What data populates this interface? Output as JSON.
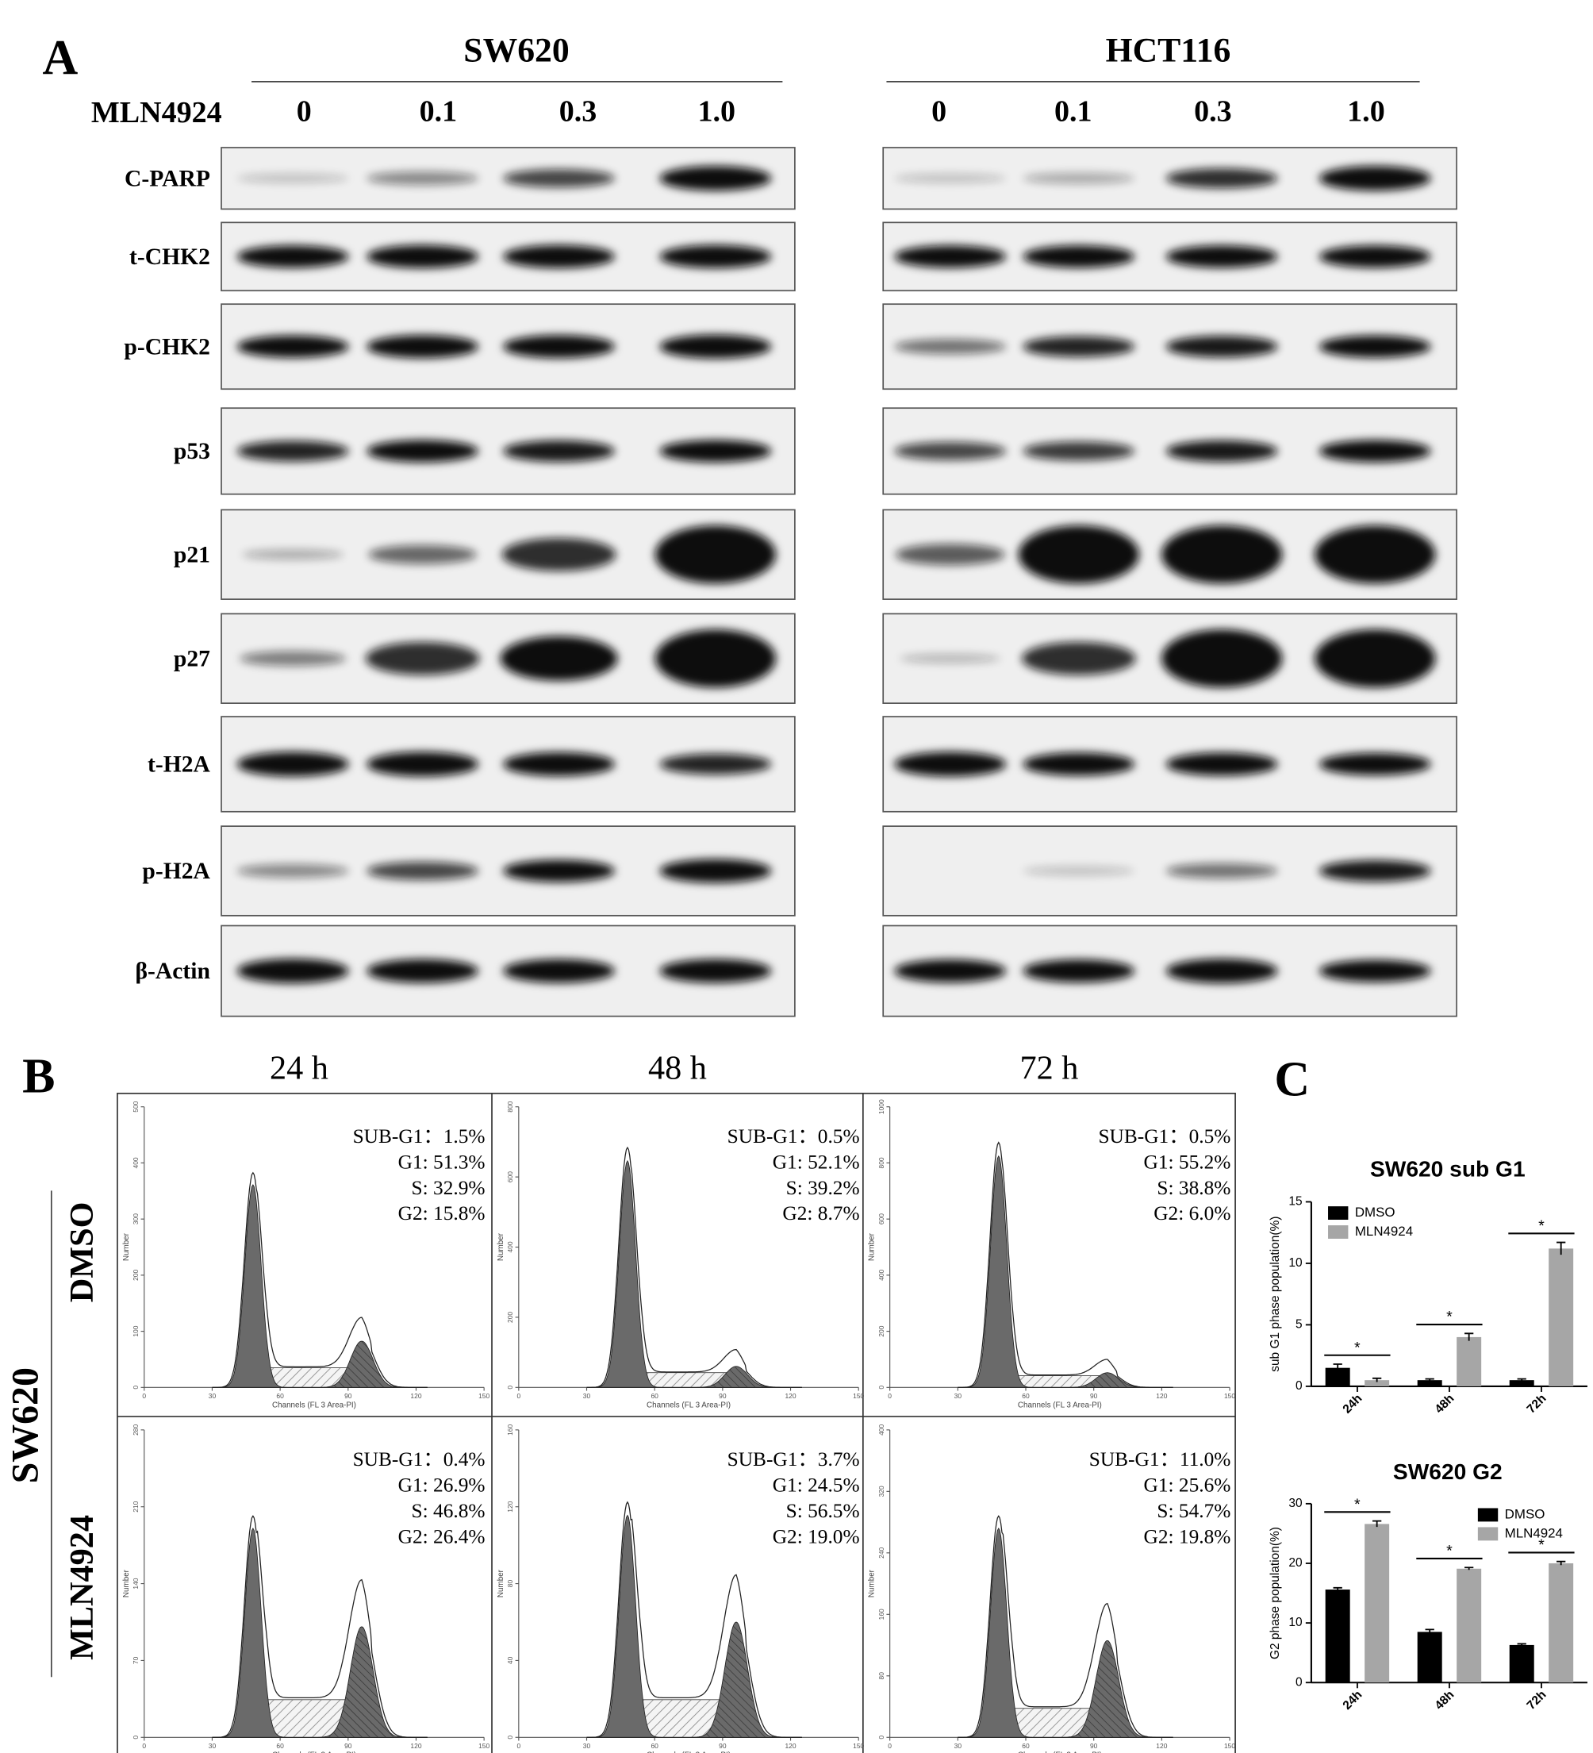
{
  "panel_a": {
    "label": "A",
    "cell_lines": [
      "SW620",
      "HCT116"
    ],
    "treatment": "MLN4924",
    "doses": [
      "0",
      "0.1",
      "0.3",
      "1.0"
    ],
    "proteins": [
      "C-PARP",
      "t-CHK2",
      "p-CHK2",
      "p53",
      "p21",
      "p27",
      "t-H2A",
      "p-H2A",
      "β-Actin"
    ]
  },
  "panel_b": {
    "label": "B",
    "cell_line": "SW620",
    "times": [
      "24 h",
      "48 h",
      "72 h"
    ],
    "x_axis_label": "Channels (FL 3 Area-PI)",
    "y_axis_label": "Number",
    "xticks": [
      0,
      30,
      60,
      90,
      120,
      150
    ],
    "rows": [
      {
        "condition": "DMSO",
        "panels": [
          {
            "yticks": [
              0,
              100,
              200,
              300,
              400,
              500
            ],
            "stats": [
              "SUB-G1：1.5%",
              "G1: 51.3%",
              "S: 32.9%",
              "G2: 15.8%"
            ]
          },
          {
            "yticks": [
              0,
              200,
              400,
              600,
              800
            ],
            "stats": [
              "SUB-G1：0.5%",
              "G1: 52.1%",
              "S: 39.2%",
              "G2:  8.7%"
            ]
          },
          {
            "yticks": [
              0,
              200,
              400,
              600,
              800,
              1000
            ],
            "stats": [
              "SUB-G1：0.5%",
              "G1: 55.2%",
              "S: 38.8%",
              "G2:  6.0%"
            ]
          }
        ]
      },
      {
        "condition": "MLN4924",
        "panels": [
          {
            "yticks": [
              0,
              70,
              140,
              210,
              280
            ],
            "stats": [
              "SUB-G1：0.4%",
              "G1: 26.9%",
              "S: 46.8%",
              "G2: 26.4%"
            ]
          },
          {
            "yticks": [
              0,
              40,
              80,
              120,
              160
            ],
            "stats": [
              "SUB-G1：3.7%",
              "G1: 24.5%",
              "S: 56.5%",
              "G2: 19.0%"
            ]
          },
          {
            "yticks": [
              0,
              80,
              160,
              240,
              320,
              400
            ],
            "stats": [
              "SUB-G1：11.0%",
              "G1: 25.6%",
              "S: 54.7%",
              "G2: 19.8%"
            ]
          }
        ]
      }
    ]
  },
  "panel_c_label": "C",
  "chart_data": [
    {
      "type": "bar",
      "title": "SW620 sub G1",
      "y_label": "sub G1 phase population(%)",
      "categories": [
        "24h",
        "48h",
        "72h"
      ],
      "series": [
        {
          "name": "DMSO",
          "color": "#000000",
          "values": [
            1.5,
            0.5,
            0.5
          ],
          "errors": [
            0.3,
            0.1,
            0.1
          ]
        },
        {
          "name": "MLN4924",
          "color": "#a6a6a6",
          "values": [
            0.5,
            4.0,
            11.2
          ],
          "errors": [
            0.15,
            0.3,
            0.5
          ]
        }
      ],
      "significance": [
        "*",
        "*",
        "*"
      ],
      "ylim": [
        0,
        15
      ],
      "yticks": [
        0,
        5,
        10,
        15
      ],
      "legend": "upper left"
    },
    {
      "type": "bar",
      "title": "SW620 G2",
      "y_label": "G2 phase population(%)",
      "categories": [
        "24h",
        "48h",
        "72h"
      ],
      "series": [
        {
          "name": "DMSO",
          "color": "#000000",
          "values": [
            15.6,
            8.5,
            6.3
          ],
          "errors": [
            0.3,
            0.4,
            0.2
          ]
        },
        {
          "name": "MLN4924",
          "color": "#a6a6a6",
          "values": [
            26.6,
            19.1,
            20.0
          ],
          "errors": [
            0.5,
            0.2,
            0.3
          ]
        }
      ],
      "significance": [
        "*",
        "*",
        "*"
      ],
      "ylim": [
        0,
        30
      ],
      "yticks": [
        0,
        10,
        20,
        30
      ],
      "legend": "upper right"
    }
  ]
}
